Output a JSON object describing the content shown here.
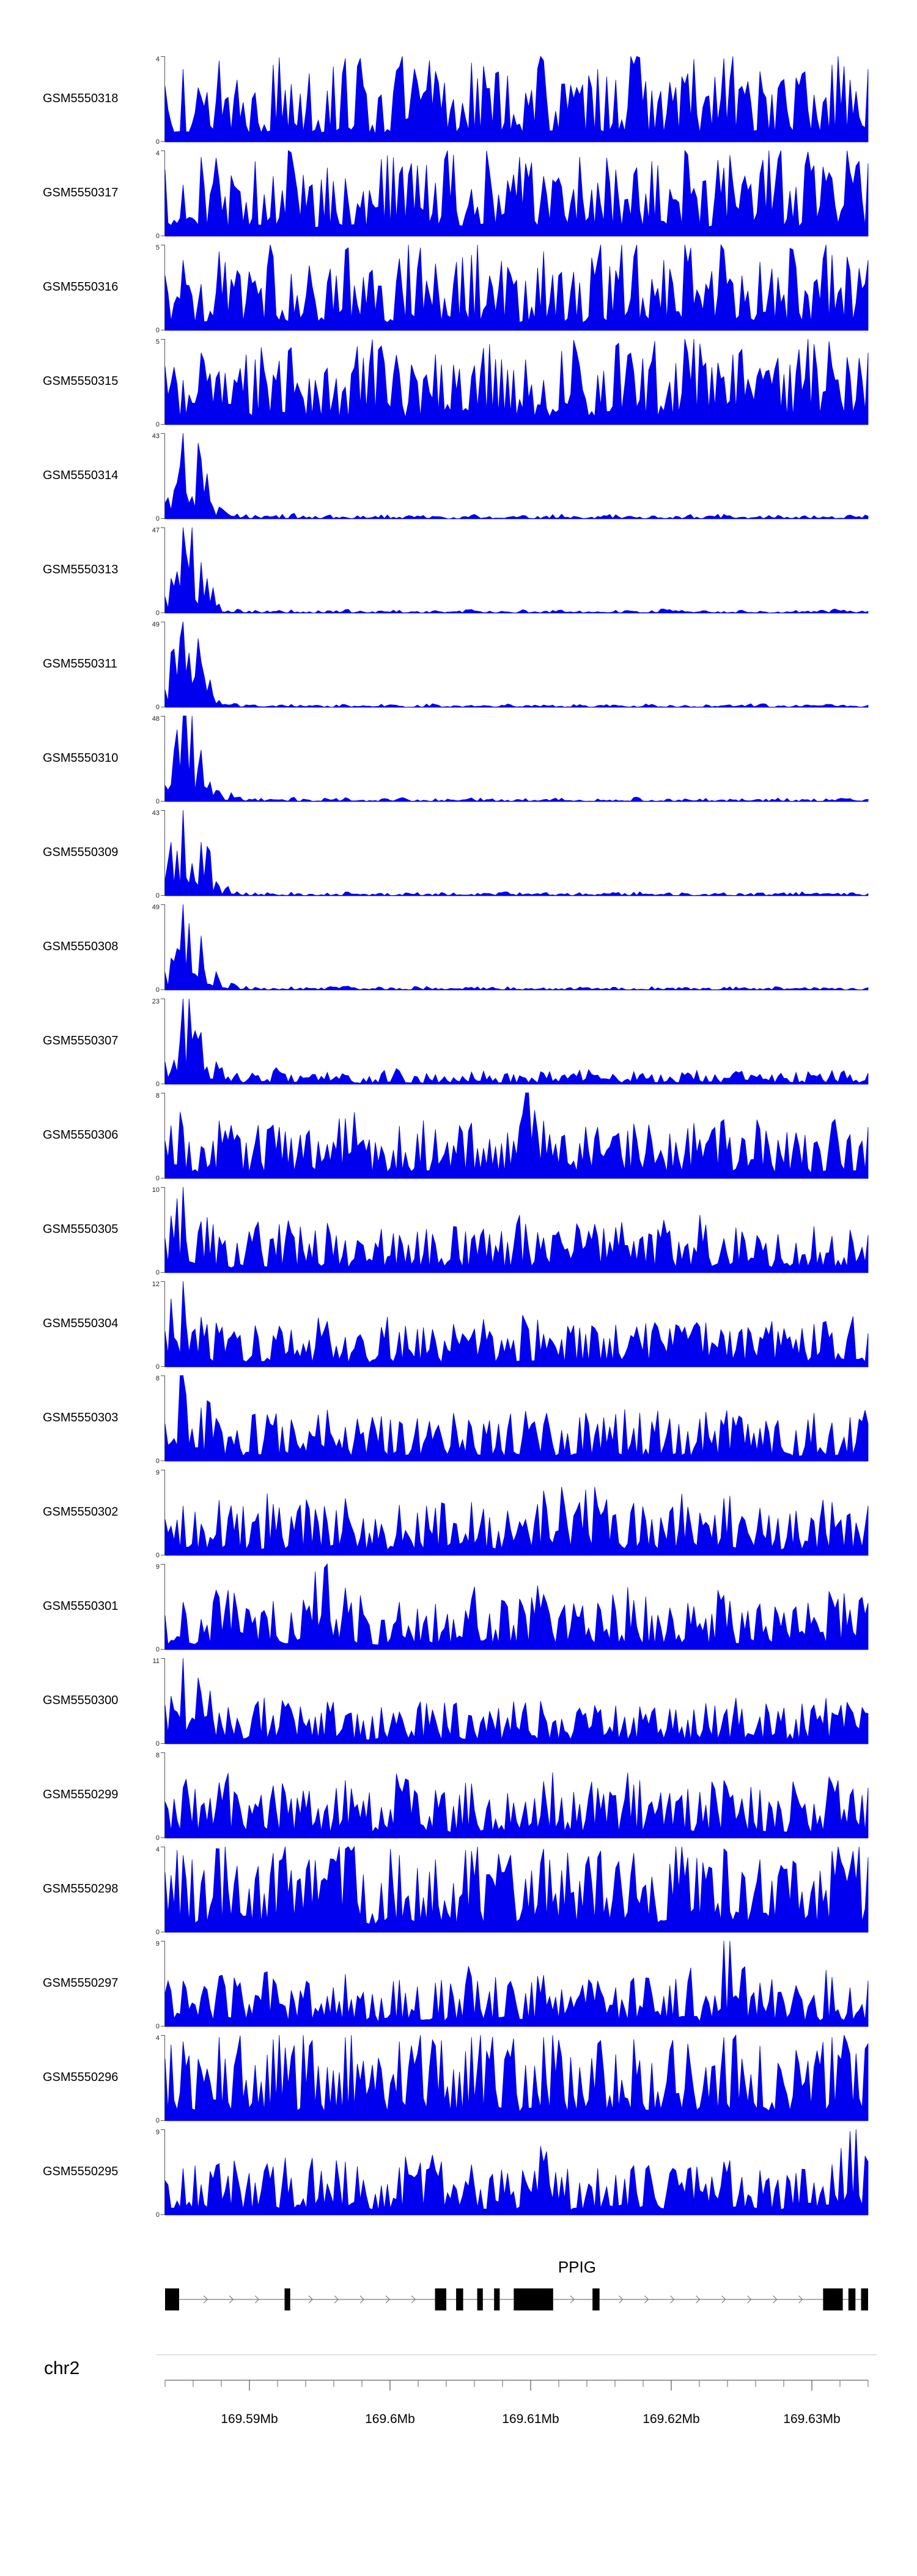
{
  "y_axis_zero_label": "0",
  "chart_data": {
    "type": "area",
    "title": "",
    "signal_color": "#0000EE",
    "legend": "none",
    "region": {
      "chromosome": "chr2",
      "start_mb": 169.584,
      "end_mb": 169.634
    },
    "tracks": [
      {
        "label": "GSM5550318",
        "ymax": 4,
        "seed": 13,
        "values": [
          2.6,
          3.4,
          2.1,
          3.8,
          2.9,
          2.3,
          3.6,
          2.7,
          3.2,
          2.4,
          3.9,
          2.6,
          2.2,
          3.5,
          2.8,
          3.3,
          2.0,
          3.7,
          2.5,
          3.1,
          2.3,
          3.8,
          2.7,
          2.2,
          3.4,
          2.9,
          3.6,
          2.4,
          2.8,
          3.2,
          2.1,
          3.9,
          2.6,
          3.3,
          2.5,
          3.0,
          2.2,
          3.6,
          2.9,
          3.4
        ]
      },
      {
        "label": "GSM5550317",
        "ymax": 4,
        "seed": 29,
        "values": [
          3.1,
          2.4,
          3.7,
          2.6,
          2.2,
          3.5,
          2.8,
          3.9,
          2.3,
          3.2,
          2.7,
          2.1,
          3.6,
          2.9,
          3.3,
          2.5,
          3.8,
          2.2,
          3.0,
          2.6,
          3.4,
          2.8,
          2.3,
          3.7,
          2.5,
          3.1,
          2.9,
          3.5,
          2.2,
          3.8,
          2.6,
          3.2,
          2.4,
          2.9,
          3.6,
          2.3,
          3.3,
          2.7,
          3.0,
          3.4
        ]
      },
      {
        "label": "GSM5550316",
        "ymax": 5,
        "seed": 47,
        "values": [
          3.2,
          4.1,
          2.7,
          4.6,
          3.5,
          2.9,
          4.3,
          3.3,
          3.8,
          2.8,
          4.7,
          3.1,
          2.6,
          4.2,
          3.6,
          3.9,
          2.7,
          4.4,
          3.2,
          3.7,
          2.9,
          4.6,
          3.4,
          2.8,
          4.1,
          3.5,
          4.3,
          3.0,
          3.6,
          3.9,
          2.7,
          4.7,
          3.2,
          4.0,
          3.1,
          3.7,
          2.8,
          4.4,
          3.5,
          4.1
        ]
      },
      {
        "label": "GSM5550315",
        "ymax": 5,
        "seed": 61,
        "values": [
          3.4,
          2.6,
          4.2,
          3.1,
          2.4,
          3.8,
          2.9,
          4.5,
          2.7,
          3.3,
          2.2,
          3.9,
          4.6,
          3.0,
          2.5,
          4.1,
          3.5,
          2.8,
          4.7,
          3.2,
          3.8,
          2.6,
          4.3,
          3.4,
          2.9,
          4.6,
          3.1,
          3.7,
          2.5,
          4.2,
          3.6,
          2.8,
          4.4,
          3.3,
          3.9,
          3.0,
          4.7,
          3.4,
          2.9,
          4.2
        ]
      },
      {
        "label": "GSM5550314",
        "ymax": 43,
        "seed": 83,
        "values": [
          8,
          43,
          30,
          6,
          2.5,
          1.8,
          1.2,
          2.2,
          1.0,
          1.6,
          0.8,
          1.4,
          2.0,
          0.9,
          1.5,
          1.1,
          0.7,
          1.8,
          1.2,
          0.8,
          1.6,
          1.0,
          2.4,
          0.7,
          1.3,
          2.1,
          0.9,
          1.5,
          0.8,
          1.7,
          1.1,
          2.3,
          0.9,
          1.4,
          1.8,
          1.0,
          1.6,
          1.2,
          2.0,
          1.4
        ]
      },
      {
        "label": "GSM5550313",
        "ymax": 47,
        "seed": 101,
        "values": [
          9,
          47,
          28,
          5,
          2.2,
          1.5,
          1.0,
          1.8,
          0.8,
          1.3,
          1.9,
          0.7,
          1.2,
          1.6,
          0.9,
          1.4,
          0.8,
          2.0,
          1.1,
          0.7,
          1.5,
          0.9,
          1.7,
          1.2,
          0.8,
          1.6,
          1.0,
          1.4,
          1.9,
          0.8,
          1.3,
          0.9,
          1.6,
          1.1,
          0.7,
          1.5,
          1.0,
          1.8,
          1.2,
          0.9
        ]
      },
      {
        "label": "GSM5550311",
        "ymax": 49,
        "seed": 127,
        "values": [
          10,
          49,
          26,
          4,
          2.0,
          1.4,
          0.9,
          1.7,
          1.1,
          0.8,
          1.5,
          1.0,
          1.8,
          0.7,
          1.3,
          1.6,
          0.9,
          1.2,
          0.8,
          1.9,
          1.1,
          1.4,
          0.7,
          1.6,
          1.0,
          1.3,
          0.9,
          1.7,
          1.2,
          0.8,
          1.5,
          1.0,
          1.4,
          1.8,
          0.9,
          1.3,
          1.1,
          1.6,
          0.8,
          1.2
        ]
      },
      {
        "label": "GSM5550310",
        "ymax": 48,
        "seed": 149,
        "values": [
          9,
          48,
          29,
          6,
          2.4,
          1.6,
          1.1,
          2.0,
          0.9,
          1.5,
          2.2,
          0.8,
          1.4,
          1.8,
          1.0,
          1.6,
          0.9,
          2.1,
          1.2,
          0.8,
          1.7,
          1.1,
          1.9,
          0.9,
          1.5,
          1.0,
          2.3,
          0.8,
          1.4,
          1.1,
          1.8,
          0.9,
          1.6,
          1.2,
          2.0,
          0.9,
          1.5,
          1.1,
          1.7,
          1.3
        ]
      },
      {
        "label": "GSM5550309",
        "ymax": 43,
        "seed": 167,
        "values": [
          8,
          43,
          27,
          5,
          2.1,
          1.5,
          1.0,
          1.8,
          0.8,
          1.4,
          1.9,
          0.9,
          1.3,
          0.8,
          1.7,
          1.1,
          1.5,
          0.8,
          1.2,
          1.9,
          0.9,
          1.4,
          1.0,
          1.6,
          0.8,
          1.3,
          1.8,
          0.9,
          1.5,
          1.1,
          0.8,
          1.6,
          1.0,
          1.4,
          0.9,
          1.7,
          1.2,
          0.8,
          1.5,
          1.1
        ]
      },
      {
        "label": "GSM5550308",
        "ymax": 49,
        "seed": 191,
        "values": [
          10,
          49,
          31,
          6,
          2.3,
          1.6,
          1.0,
          1.9,
          0.9,
          1.4,
          2.1,
          0.8,
          1.5,
          1.0,
          1.8,
          1.2,
          0.8,
          1.6,
          1.1,
          1.9,
          0.9,
          1.3,
          0.8,
          1.7,
          1.1,
          1.5,
          0.9,
          2.0,
          1.0,
          1.4,
          0.8,
          1.6,
          1.2,
          0.9,
          1.8,
          1.0,
          1.5,
          1.1,
          0.8,
          1.4
        ]
      },
      {
        "label": "GSM5550307",
        "ymax": 23,
        "seed": 211,
        "values": [
          6,
          23,
          14,
          4,
          3.0,
          2.2,
          3.5,
          2.5,
          1.8,
          3.2,
          2.4,
          1.6,
          2.8,
          3.6,
          2.0,
          2.6,
          1.8,
          3.3,
          2.3,
          2.9,
          1.7,
          3.0,
          2.2,
          3.8,
          2.5,
          1.9,
          3.4,
          2.6,
          2.0,
          3.1,
          2.3,
          1.7,
          3.5,
          2.7,
          2.1,
          3.2,
          2.4,
          3.7,
          2.6,
          3.0
        ]
      },
      {
        "label": "GSM5550306",
        "ymax": 8,
        "seed": 229,
        "values": [
          3.5,
          4.8,
          3.0,
          5.4,
          4.1,
          3.3,
          5.0,
          3.8,
          4.5,
          3.2,
          5.6,
          3.6,
          3.0,
          4.9,
          4.2,
          4.6,
          3.1,
          5.2,
          3.7,
          4.3,
          8.0,
          5.4,
          3.9,
          3.3,
          4.8,
          4.0,
          5.1,
          3.5,
          4.2,
          4.7,
          3.2,
          5.5,
          3.8,
          4.6,
          3.6,
          4.3,
          3.3,
          5.2,
          4.1,
          4.8
        ]
      },
      {
        "label": "GSM5550305",
        "ymax": 10,
        "seed": 251,
        "values": [
          4.0,
          10,
          6.0,
          4.2,
          3.5,
          5.2,
          4.0,
          4.7,
          3.4,
          5.8,
          3.8,
          3.2,
          5.1,
          4.4,
          4.8,
          3.3,
          5.4,
          3.9,
          4.5,
          3.6,
          5.7,
          4.1,
          3.5,
          5.0,
          4.2,
          5.3,
          3.7,
          4.4,
          4.9,
          3.4,
          5.6,
          4.0,
          4.8,
          3.8,
          4.5,
          3.5,
          5.4,
          4.3,
          5.0,
          4.4
        ]
      },
      {
        "label": "GSM5550304",
        "ymax": 12,
        "seed": 271,
        "values": [
          5.0,
          12,
          7.0,
          4.6,
          3.9,
          5.8,
          4.4,
          5.2,
          3.8,
          6.4,
          4.2,
          3.6,
          5.6,
          4.9,
          5.3,
          3.7,
          6.0,
          4.3,
          5.0,
          4.0,
          6.3,
          4.6,
          3.9,
          5.5,
          4.7,
          5.9,
          4.1,
          4.9,
          5.4,
          3.8,
          6.2,
          4.4,
          5.3,
          4.2,
          5.0,
          3.9,
          6.0,
          4.8,
          5.5,
          4.7
        ]
      },
      {
        "label": "GSM5550303",
        "ymax": 8,
        "seed": 293,
        "values": [
          3.5,
          8,
          5.0,
          3.5,
          2.9,
          4.4,
          3.3,
          3.9,
          2.8,
          4.8,
          3.2,
          2.7,
          4.2,
          3.7,
          4.0,
          2.8,
          4.5,
          3.2,
          3.8,
          3.0,
          4.7,
          3.4,
          2.9,
          4.1,
          3.5,
          4.4,
          3.1,
          3.7,
          4.0,
          2.8,
          4.6,
          3.3,
          4.0,
          3.1,
          3.8,
          2.9,
          4.5,
          3.6,
          4.1,
          3.5
        ]
      },
      {
        "label": "GSM5550302",
        "ymax": 9,
        "seed": 311,
        "values": [
          3.8,
          5.2,
          3.3,
          5.8,
          4.4,
          3.6,
          5.4,
          4.1,
          4.9,
          3.5,
          6.0,
          3.9,
          3.3,
          5.3,
          4.5,
          5.0,
          3.4,
          5.6,
          4.0,
          4.7,
          3.8,
          6.8,
          7.2,
          5.6,
          5.2,
          4.3,
          5.5,
          3.8,
          4.6,
          5.1,
          3.5,
          6.0,
          4.1,
          5.0,
          3.9,
          4.7,
          3.6,
          5.6,
          4.4,
          5.2
        ]
      },
      {
        "label": "GSM5550301",
        "ymax": 9,
        "seed": 337,
        "values": [
          3.6,
          5.0,
          3.2,
          5.5,
          4.2,
          3.4,
          5.1,
          3.9,
          4.6,
          9.0,
          6.5,
          3.7,
          3.1,
          5.0,
          4.3,
          4.8,
          3.2,
          5.3,
          3.8,
          4.5,
          3.6,
          5.8,
          4.0,
          3.4,
          4.9,
          4.1,
          5.2,
          3.6,
          4.4,
          4.9,
          3.3,
          5.7,
          3.9,
          4.8,
          3.7,
          4.5,
          3.4,
          5.3,
          4.2,
          4.9
        ]
      },
      {
        "label": "GSM5550300",
        "ymax": 11,
        "seed": 359,
        "values": [
          5.0,
          11,
          6.5,
          4.0,
          3.3,
          4.9,
          3.7,
          4.4,
          3.2,
          5.4,
          3.6,
          3.0,
          4.7,
          4.1,
          4.5,
          3.1,
          5.0,
          3.6,
          4.2,
          3.4,
          5.3,
          3.8,
          3.2,
          4.6,
          3.9,
          4.9,
          3.4,
          4.1,
          4.5,
          3.1,
          5.2,
          3.7,
          4.5,
          3.5,
          4.2,
          3.2,
          5.0,
          4.0,
          4.6,
          3.9
        ]
      },
      {
        "label": "GSM5550299",
        "ymax": 8,
        "seed": 383,
        "values": [
          3.4,
          4.7,
          3.0,
          5.2,
          4.0,
          3.2,
          4.9,
          3.7,
          4.4,
          3.1,
          5.4,
          3.5,
          2.9,
          4.8,
          4.1,
          4.5,
          3.0,
          5.1,
          3.6,
          4.2,
          3.4,
          5.3,
          3.8,
          3.2,
          4.7,
          4.0,
          5.0,
          3.4,
          4.2,
          4.6,
          3.1,
          5.4,
          3.7,
          4.5,
          3.5,
          4.2,
          3.2,
          5.1,
          4.0,
          4.7
        ]
      },
      {
        "label": "GSM5550298",
        "ymax": 4,
        "seed": 401,
        "values": [
          2.8,
          3.6,
          2.3,
          3.9,
          3.1,
          2.5,
          3.7,
          2.9,
          3.4,
          2.4,
          3.9,
          2.7,
          2.3,
          3.6,
          3.0,
          3.4,
          2.3,
          3.8,
          2.7,
          3.2,
          2.5,
          3.9,
          2.9,
          2.4,
          3.5,
          3.0,
          3.7,
          2.6,
          3.2,
          3.5,
          2.4,
          3.9,
          2.8,
          3.4,
          2.6,
          3.2,
          2.4,
          3.8,
          3.0,
          3.5
        ]
      },
      {
        "label": "GSM5550297",
        "ymax": 9,
        "seed": 421,
        "values": [
          3.5,
          4.8,
          3.1,
          5.3,
          4.1,
          3.3,
          5.0,
          3.8,
          4.5,
          3.2,
          5.5,
          3.6,
          3.0,
          4.9,
          4.2,
          4.6,
          3.1,
          5.2,
          3.7,
          4.3,
          3.5,
          5.4,
          3.9,
          3.3,
          4.8,
          4.1,
          5.1,
          3.5,
          4.3,
          4.7,
          3.2,
          9.0,
          6.0,
          4.6,
          3.6,
          4.3,
          3.3,
          5.2,
          4.1,
          4.8
        ]
      },
      {
        "label": "GSM5550296",
        "ymax": 4,
        "seed": 443,
        "values": [
          2.9,
          3.7,
          2.4,
          3.9,
          3.2,
          2.6,
          3.8,
          3.0,
          3.5,
          2.5,
          3.9,
          2.8,
          2.4,
          3.7,
          3.1,
          3.5,
          2.4,
          3.9,
          2.8,
          3.3,
          2.6,
          3.9,
          3.0,
          2.5,
          3.6,
          3.1,
          3.8,
          2.7,
          3.3,
          3.6,
          2.5,
          3.9,
          2.9,
          3.5,
          2.7,
          3.3,
          2.5,
          3.9,
          3.1,
          3.6
        ]
      },
      {
        "label": "GSM5550295",
        "ymax": 9,
        "seed": 463,
        "values": [
          3.6,
          4.9,
          3.2,
          5.4,
          4.2,
          3.4,
          5.1,
          3.9,
          4.6,
          3.3,
          5.6,
          3.7,
          3.1,
          5.0,
          4.3,
          4.7,
          3.2,
          5.3,
          3.8,
          4.4,
          3.6,
          5.5,
          4.0,
          3.4,
          4.9,
          4.2,
          5.2,
          3.6,
          4.4,
          4.8,
          3.3,
          5.6,
          4.0,
          4.7,
          3.7,
          4.4,
          3.4,
          5.3,
          8.8,
          5.6
        ]
      }
    ],
    "gene": {
      "name": "PPIG",
      "strand": "+",
      "label_mb": 169.6133,
      "exon_color": "#000000",
      "line_color": "#7a7a7a",
      "exons_mb": [
        [
          169.584,
          169.585
        ],
        [
          169.5925,
          169.5929
        ],
        [
          169.6032,
          169.604
        ],
        [
          169.6047,
          169.6052
        ],
        [
          169.6062,
          169.6066
        ],
        [
          169.6074,
          169.6078
        ],
        [
          169.6088,
          169.6116
        ],
        [
          169.6144,
          169.6149
        ],
        [
          169.6308,
          169.6322
        ],
        [
          169.6326,
          169.6331
        ],
        [
          169.6335,
          169.634
        ]
      ]
    },
    "axis": {
      "chromosome": "chr2",
      "unit": "Mb",
      "minor_tick_interval_mb": 0.002,
      "major_ticks_mb": [
        169.59,
        169.6,
        169.61,
        169.62,
        169.63
      ],
      "major_tick_labels": [
        "169.59Mb",
        "169.6Mb",
        "169.61Mb",
        "169.62Mb",
        "169.63Mb"
      ]
    }
  }
}
